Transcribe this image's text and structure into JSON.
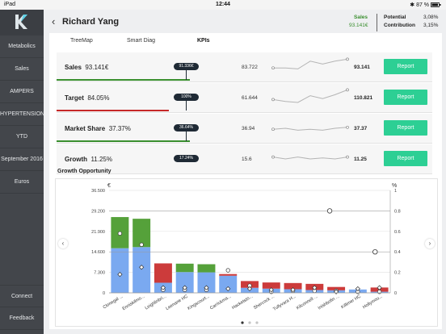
{
  "status_bar": {
    "device": "iPad",
    "time": "12:44",
    "battery": "87 %"
  },
  "sidebar": {
    "items": [
      {
        "label": "Metabolics"
      },
      {
        "label": "Sales"
      },
      {
        "label": "AMPERS"
      },
      {
        "label": "HYPERTENSION"
      },
      {
        "label": "YTD"
      },
      {
        "label": "September 2016"
      },
      {
        "label": "Euros"
      }
    ],
    "bottom": [
      {
        "label": "Connect"
      },
      {
        "label": "Feedback"
      }
    ],
    "colors": {
      "bg": "#43464b",
      "logo_accent": "#5ed0e6"
    }
  },
  "header": {
    "back_glyph": "‹",
    "title": "Richard Yang",
    "sales_label": "Sales",
    "sales_value": "93.141€",
    "potential_label": "Potential",
    "potential_value": "3,08%",
    "contribution_label": "Contribution",
    "contribution_value": "3,15%",
    "accent": "#3a8f2f"
  },
  "tabs": [
    {
      "label": "TreeMap"
    },
    {
      "label": "Smart Diag"
    },
    {
      "label": "KPIs",
      "active": true
    }
  ],
  "kpis": [
    {
      "name": "Sales",
      "value": "93.141€",
      "flag": "91.336€",
      "low": "83.722",
      "high": "93.141",
      "button": "Report",
      "bar_color": "#3a8f2f",
      "progress": 0.5,
      "trend": [
        0.55,
        0.55,
        0.6,
        0.2,
        0.35,
        0.2,
        0.1
      ]
    },
    {
      "name": "Target",
      "value": "84.05%",
      "flag": "100%",
      "low": "61.644",
      "high": "110.821",
      "button": "Report",
      "bar_color": "#c62828",
      "progress": 0.42,
      "trend": [
        0.6,
        0.7,
        0.75,
        0.4,
        0.55,
        0.35,
        0.1
      ]
    },
    {
      "name": "Market Share",
      "value": "37.37%",
      "flag": "36.64%",
      "low": "36.94",
      "high": "37.37",
      "button": "Report",
      "bar_color": "#3a8f2f",
      "progress": 0.5,
      "trend": [
        0.55,
        0.5,
        0.6,
        0.55,
        0.6,
        0.5,
        0.45
      ]
    },
    {
      "name": "Growth",
      "value": "11.25%",
      "flag": "17.24%",
      "low": "15.6",
      "high": "11.25",
      "button": "Report",
      "bar_color": "#c62828",
      "progress": 0.3,
      "trend": [
        0.4,
        0.5,
        0.4,
        0.5,
        0.45,
        0.5,
        0.4
      ]
    }
  ],
  "growth": {
    "title": "Growth Opportunity"
  },
  "chart_data": {
    "type": "bar",
    "title": "Growth Opportunity",
    "y_left_unit": "€",
    "y_right_unit": "%",
    "y_left_ticks": [
      "0",
      "7.300",
      "14.600",
      "21.900",
      "29.200",
      "36.500"
    ],
    "y_right_ticks": [
      "0",
      "0.2",
      "0.4",
      "0.6",
      "0.8",
      "1"
    ],
    "ylim": [
      0,
      36500
    ],
    "y2lim": [
      0,
      1
    ],
    "grid": true,
    "categories": [
      "Clonegal ...",
      "Enniskilmo...",
      "Leighlinbri...",
      "Leenane HC",
      "Kingscourt...",
      "Carrickma...",
      "Hacketsto...",
      "Shercock ...",
      "Tullyvara H...",
      "Kilconnell ...",
      "Inishbofin ...",
      "Killimer HC",
      "Hollymou..."
    ],
    "series": [
      {
        "color": "#7aa9f0",
        "values": [
          27000,
          26400,
          3600,
          7400,
          7300,
          6100,
          1800,
          1500,
          1300,
          1000,
          900,
          1200,
          400
        ]
      },
      {
        "color": "#55a13a",
        "values": [
          0,
          0,
          0,
          0,
          0,
          0,
          0,
          0,
          0,
          0,
          0,
          0,
          0
        ]
      },
      {
        "color": "#cc3b3b",
        "values": [
          0,
          0,
          0,
          0,
          0,
          0,
          0,
          0,
          0,
          0,
          0,
          0,
          0
        ]
      }
    ],
    "bars": {
      "blue": [
        15900,
        16300,
        3600,
        7400,
        7300,
        6100,
        1800,
        1500,
        1300,
        1000,
        900,
        1200,
        400
      ],
      "green": [
        11100,
        10100,
        0,
        3000,
        2900,
        0,
        0,
        0,
        0,
        0,
        0,
        0,
        0
      ],
      "red": [
        0,
        0,
        6900,
        0,
        0,
        600,
        2400,
        2200,
        2200,
        2200,
        1200,
        0,
        1500
      ]
    },
    "circles": [
      0.58,
      0.47,
      0.03,
      0.03,
      0.03,
      0.22,
      0.07,
      0.01,
      0.02,
      0.02,
      0.02,
      0.01,
      0.01
    ],
    "diamonds": [
      0.18,
      0.25,
      0.05,
      0.05,
      0.05,
      0.04,
      0.04,
      0.03,
      0.03,
      0.05,
      0.01,
      0.04,
      0.05
    ],
    "markers": [
      {
        "x": 10.2,
        "y": 0.8
      },
      {
        "x": 12.3,
        "y": 0.4
      }
    ]
  },
  "pagination": {
    "pages": 3,
    "current": 0
  }
}
